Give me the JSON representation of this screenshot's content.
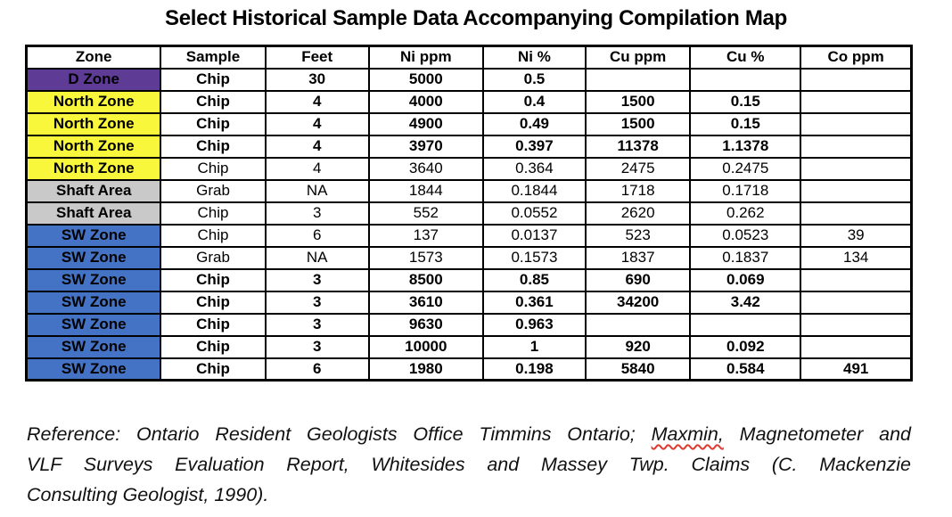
{
  "title": "Select Historical Sample Data Accompanying Compilation Map",
  "zone_colors": {
    "purple": "#5E3C96",
    "yellow": "#F9F73B",
    "gray": "#C9C9C9",
    "blue": "#4472C4"
  },
  "table": {
    "columns": [
      "Zone",
      "Sample",
      "Feet",
      "Ni ppm",
      "Ni %",
      "Cu ppm",
      "Cu %",
      "Co ppm"
    ],
    "column_widths_pct": [
      15.2,
      11.8,
      11.7,
      12.9,
      11.6,
      11.8,
      12.5,
      12.5
    ],
    "rows": [
      {
        "zone": "D Zone",
        "zone_color": "purple",
        "bold": true,
        "cells": [
          "Chip",
          "30",
          "5000",
          "0.5",
          "",
          "",
          ""
        ]
      },
      {
        "zone": "North Zone",
        "zone_color": "yellow",
        "bold": true,
        "cells": [
          "Chip",
          "4",
          "4000",
          "0.4",
          "1500",
          "0.15",
          ""
        ]
      },
      {
        "zone": "North Zone",
        "zone_color": "yellow",
        "bold": true,
        "cells": [
          "Chip",
          "4",
          "4900",
          "0.49",
          "1500",
          "0.15",
          ""
        ]
      },
      {
        "zone": "North Zone",
        "zone_color": "yellow",
        "bold": true,
        "cells": [
          "Chip",
          "4",
          "3970",
          "0.397",
          "11378",
          "1.1378",
          ""
        ]
      },
      {
        "zone": "North Zone",
        "zone_color": "yellow",
        "bold": false,
        "cells": [
          "Chip",
          "4",
          "3640",
          "0.364",
          "2475",
          "0.2475",
          ""
        ]
      },
      {
        "zone": "Shaft Area",
        "zone_color": "gray",
        "bold": false,
        "cells": [
          "Grab",
          "NA",
          "1844",
          "0.1844",
          "1718",
          "0.1718",
          ""
        ]
      },
      {
        "zone": "Shaft Area",
        "zone_color": "gray",
        "bold": false,
        "cells": [
          "Chip",
          "3",
          "552",
          "0.0552",
          "2620",
          "0.262",
          ""
        ]
      },
      {
        "zone": "SW Zone",
        "zone_color": "blue",
        "bold": false,
        "cells": [
          "Chip",
          "6",
          "137",
          "0.0137",
          "523",
          "0.0523",
          "39"
        ]
      },
      {
        "zone": "SW Zone",
        "zone_color": "blue",
        "bold": false,
        "cells": [
          "Grab",
          "NA",
          "1573",
          "0.1573",
          "1837",
          "0.1837",
          "134"
        ]
      },
      {
        "zone": "SW Zone",
        "zone_color": "blue",
        "bold": true,
        "cells": [
          "Chip",
          "3",
          "8500",
          "0.85",
          "690",
          "0.069",
          ""
        ]
      },
      {
        "zone": "SW Zone",
        "zone_color": "blue",
        "bold": true,
        "cells": [
          "Chip",
          "3",
          "3610",
          "0.361",
          "34200",
          "3.42",
          ""
        ]
      },
      {
        "zone": "SW Zone",
        "zone_color": "blue",
        "bold": true,
        "cells": [
          "Chip",
          "3",
          "9630",
          "0.963",
          "",
          "",
          ""
        ]
      },
      {
        "zone": "SW Zone",
        "zone_color": "blue",
        "bold": true,
        "cells": [
          "Chip",
          "3",
          "10000",
          "1",
          "920",
          "0.092",
          ""
        ]
      },
      {
        "zone": "SW Zone",
        "zone_color": "blue",
        "bold": true,
        "cells": [
          "Chip",
          "6",
          "1980",
          "0.198",
          "5840",
          "0.584",
          "491"
        ]
      }
    ]
  },
  "reference": {
    "line1_before": "Reference: Ontario Resident Geologists Office Timmins Ontario; ",
    "line1_misspelled": "Maxmin,",
    "line1_after": " Magnetometer and",
    "line2": "VLF Surveys Evaluation Report, Whitesides and Massey Twp. Claims (C. Mackenzie",
    "line3": "Consulting Geologist, 1990)."
  }
}
